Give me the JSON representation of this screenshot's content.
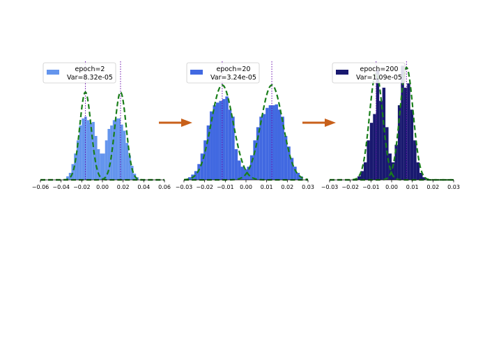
{
  "chart_data": [
    {
      "type": "histogram",
      "title": "",
      "xlabel": "",
      "ylabel": "",
      "xlim": [
        -0.06,
        0.06
      ],
      "ylim": [
        0,
        1.35
      ],
      "xticks": [
        "−0.06",
        "−0.04",
        "−0.02",
        "0.00",
        "0.02",
        "0.04",
        "0.06"
      ],
      "xtick_values": [
        -0.06,
        -0.04,
        -0.02,
        0.0,
        0.02,
        0.04,
        0.06
      ],
      "legend": {
        "line1": "epoch=2",
        "line2": "Var=8.32e-05",
        "placement": "top-left"
      },
      "bar_color": "#6495ED",
      "bins_x": [
        -0.035,
        -0.0325,
        -0.03,
        -0.0275,
        -0.025,
        -0.0225,
        -0.02,
        -0.0175,
        -0.015,
        -0.0125,
        -0.01,
        -0.0075,
        -0.005,
        -0.0025,
        0.0,
        0.0025,
        0.005,
        0.0075,
        0.01,
        0.0125,
        0.015,
        0.0175,
        0.02,
        0.0225,
        0.025,
        0.0275,
        0.03,
        0.0325
      ],
      "bins_height": [
        0.04,
        0.08,
        0.18,
        0.3,
        0.45,
        0.62,
        0.7,
        0.72,
        0.68,
        0.65,
        0.66,
        0.5,
        0.35,
        0.3,
        0.3,
        0.45,
        0.58,
        0.62,
        0.68,
        0.7,
        0.7,
        0.63,
        0.56,
        0.42,
        0.28,
        0.16,
        0.07,
        0.03
      ],
      "bin_width": 0.0025,
      "fits": [
        {
          "mean": -0.0165,
          "std": 0.0055,
          "peak": 1.0
        },
        {
          "mean": 0.0175,
          "std": 0.0055,
          "peak": 1.0
        }
      ],
      "vlines": [
        -0.0165,
        0.0175
      ]
    },
    {
      "type": "histogram",
      "title": "",
      "xlabel": "",
      "ylabel": "",
      "xlim": [
        -0.03,
        0.03
      ],
      "ylim": [
        0,
        1.35
      ],
      "xticks": [
        "−0.03",
        "−0.02",
        "−0.01",
        "0.00",
        "0.01",
        "0.02",
        "0.03"
      ],
      "xtick_values": [
        -0.03,
        -0.02,
        -0.01,
        0.0,
        0.01,
        0.02,
        0.03
      ],
      "legend": {
        "line1": "epoch=20",
        "line2": "Var=3.24e-05",
        "placement": "top-left"
      },
      "bar_color": "#4169E1",
      "bins_x": [
        -0.028,
        -0.0265,
        -0.025,
        -0.0235,
        -0.022,
        -0.0205,
        -0.019,
        -0.0175,
        -0.016,
        -0.0145,
        -0.013,
        -0.0115,
        -0.01,
        -0.0085,
        -0.007,
        -0.0055,
        -0.004,
        -0.0025,
        -0.001,
        0.0005,
        0.002,
        0.0035,
        0.005,
        0.0065,
        0.008,
        0.0095,
        0.011,
        0.0125,
        0.014,
        0.0155,
        0.017,
        0.0185,
        0.02,
        0.0215,
        0.023,
        0.0245,
        0.026
      ],
      "bins_height": [
        0.03,
        0.06,
        0.1,
        0.18,
        0.3,
        0.45,
        0.62,
        0.78,
        0.85,
        0.88,
        0.9,
        0.92,
        0.95,
        0.8,
        0.72,
        0.35,
        0.22,
        0.15,
        0.12,
        0.15,
        0.28,
        0.45,
        0.6,
        0.72,
        0.75,
        0.82,
        0.85,
        0.85,
        0.86,
        0.8,
        0.72,
        0.5,
        0.38,
        0.25,
        0.15,
        0.08,
        0.04
      ],
      "bin_width": 0.0015,
      "fits": [
        {
          "mean": -0.0115,
          "std": 0.0053,
          "peak": 1.08
        },
        {
          "mean": 0.0125,
          "std": 0.0053,
          "peak": 1.08
        }
      ],
      "vlines": [
        -0.0115,
        0.0125
      ]
    },
    {
      "type": "histogram",
      "title": "",
      "xlabel": "",
      "ylabel": "",
      "xlim": [
        -0.03,
        0.03
      ],
      "ylim": [
        0,
        1.35
      ],
      "xticks": [
        "−0.03",
        "−0.02",
        "−0.01",
        "0.00",
        "0.01",
        "0.02",
        "0.03"
      ],
      "xtick_values": [
        -0.03,
        -0.02,
        -0.01,
        0.0,
        0.01,
        0.02,
        0.03
      ],
      "legend": {
        "line1": "epoch=200",
        "line2": "Var=1.09e-05",
        "placement": "top-left"
      },
      "bar_color": "#191970",
      "bins_x": [
        -0.0165,
        -0.015,
        -0.0135,
        -0.012,
        -0.0105,
        -0.009,
        -0.0075,
        -0.006,
        -0.0045,
        -0.003,
        -0.0015,
        0.0,
        0.0015,
        0.003,
        0.0045,
        0.006,
        0.0075,
        0.009,
        0.0105,
        0.012,
        0.0135,
        0.015
      ],
      "bins_height": [
        0.04,
        0.1,
        0.2,
        0.45,
        0.65,
        0.75,
        1.25,
        0.9,
        1.05,
        0.6,
        0.3,
        0.2,
        0.4,
        0.85,
        1.3,
        1.05,
        1.1,
        0.8,
        0.45,
        0.2,
        0.08,
        0.03
      ],
      "bin_width": 0.0015,
      "fits": [
        {
          "mean": -0.0075,
          "std": 0.0032,
          "peak": 1.22
        },
        {
          "mean": 0.0072,
          "std": 0.0032,
          "peak": 1.28
        }
      ],
      "vlines": [
        -0.0075,
        0.0072
      ]
    }
  ],
  "colors": {
    "fit_line": "#1a7f1a",
    "vline": "#6a0dad",
    "arrow": "#c8601a",
    "axis": "#000000"
  },
  "arrows": 2
}
